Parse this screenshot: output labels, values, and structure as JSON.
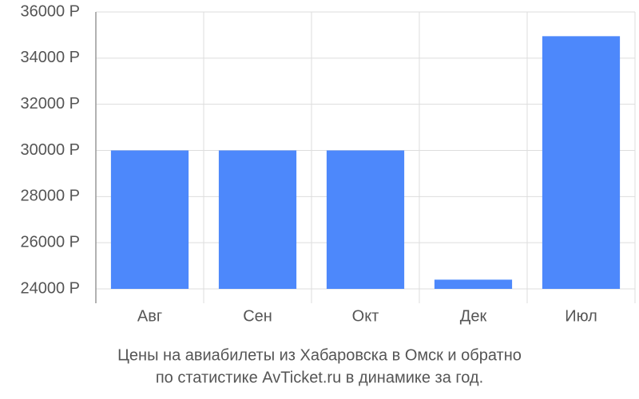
{
  "chart_data": {
    "type": "bar",
    "title": [
      "Цены на авиабилеты из Хабаровска в Омск и обратно",
      "по статистике AvTicket.ru в динамике за год."
    ],
    "categories": [
      "Авг",
      "Сен",
      "Окт",
      "Дек",
      "Июл"
    ],
    "values": [
      30000,
      30000,
      30000,
      24400,
      34950
    ],
    "color": "#4d88fb",
    "ylim": [
      24000,
      36000
    ],
    "yticks": [
      {
        "value": 24000,
        "label": "24000 Р"
      },
      {
        "value": 26000,
        "label": "26000 Р"
      },
      {
        "value": 28000,
        "label": "28000 Р"
      },
      {
        "value": 30000,
        "label": "30000 Р"
      },
      {
        "value": 32000,
        "label": "32000 Р"
      },
      {
        "value": 34000,
        "label": "34000 Р"
      },
      {
        "value": 36000,
        "label": "36000 Р"
      }
    ],
    "grid": true
  }
}
